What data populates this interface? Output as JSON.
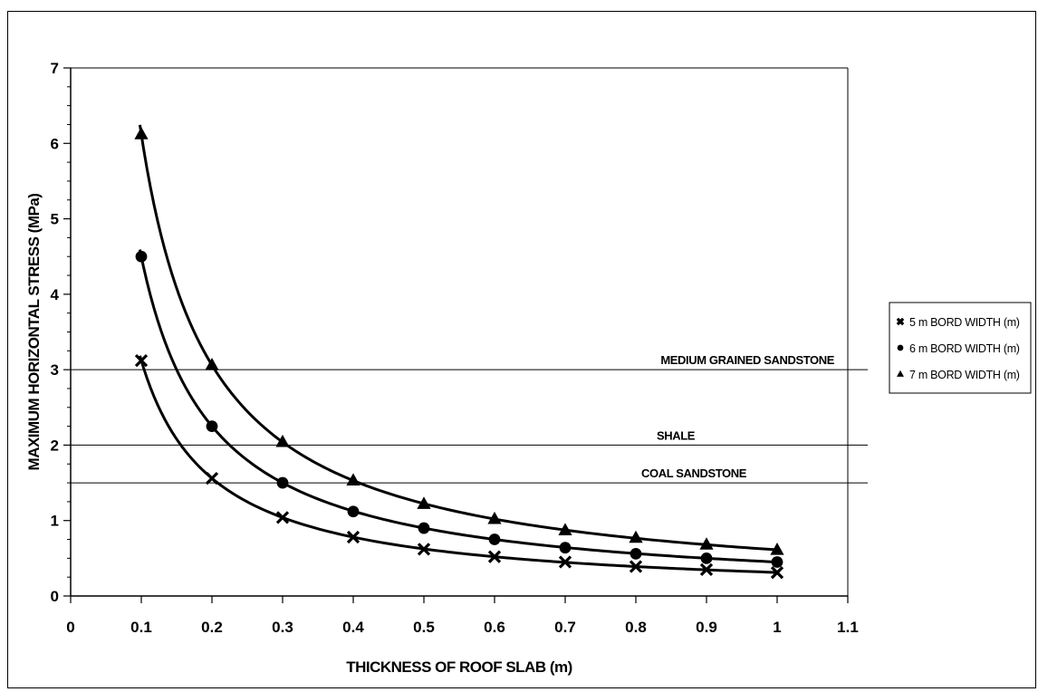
{
  "chart_data": {
    "type": "scatter",
    "xlabel": "THICKNESS OF ROOF SLAB (m)",
    "ylabel": "MAXIMUM HORIZONTAL STRESS (MPa)",
    "xlim": [
      0,
      1.1
    ],
    "ylim": [
      0,
      7
    ],
    "x_ticks": [
      "0",
      "0.1",
      "0.2",
      "0.3",
      "0.4",
      "0.5",
      "0.6",
      "0.7",
      "0.8",
      "0.9",
      "1",
      "1.1"
    ],
    "y_ticks": [
      "0",
      "1",
      "2",
      "3",
      "4",
      "5",
      "6",
      "7"
    ],
    "grid": false,
    "legend_position": "right",
    "trendlines": "power fit per series",
    "x": [
      0.1,
      0.2,
      0.3,
      0.4,
      0.5,
      0.6,
      0.7,
      0.8,
      0.9,
      1.0
    ],
    "series": [
      {
        "name": "5 m BORD WIDTH (m)",
        "marker": "x",
        "values": [
          3.12,
          1.56,
          1.04,
          0.78,
          0.62,
          0.52,
          0.45,
          0.39,
          0.35,
          0.31
        ]
      },
      {
        "name": "6 m BORD WIDTH (m)",
        "marker": "circle",
        "values": [
          4.5,
          2.25,
          1.5,
          1.12,
          0.9,
          0.75,
          0.64,
          0.56,
          0.5,
          0.45
        ]
      },
      {
        "name": "7 m BORD WIDTH (m)",
        "marker": "triangle",
        "values": [
          6.12,
          3.06,
          2.04,
          1.53,
          1.22,
          1.02,
          0.87,
          0.77,
          0.68,
          0.61
        ]
      }
    ],
    "reference_lines": [
      {
        "label": "MEDIUM GRAINED SANDSTONE",
        "y": 3.0
      },
      {
        "label": "SHALE",
        "y": 2.0
      },
      {
        "label": "COAL SANDSTONE",
        "y": 1.5
      }
    ]
  }
}
